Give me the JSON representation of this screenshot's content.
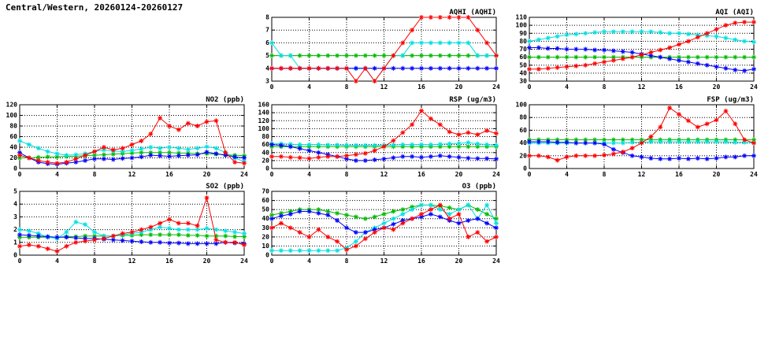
{
  "page_title": "Central/Western, 20260124-20260127",
  "chart_data": [
    {
      "type": "line",
      "title": "AQHI (AQHI)",
      "xlim": [
        0,
        24
      ],
      "x_ticks": [
        0,
        4,
        8,
        12,
        16,
        20,
        24
      ],
      "ylim": [
        3,
        8
      ],
      "y_ticks": [
        3,
        4,
        5,
        6,
        7,
        8
      ],
      "x": [
        0,
        1,
        2,
        3,
        4,
        5,
        6,
        7,
        8,
        9,
        10,
        11,
        12,
        13,
        14,
        15,
        16,
        17,
        18,
        19,
        20,
        21,
        22,
        23,
        24
      ],
      "series": [
        {
          "name": "green",
          "color": "#00bb00",
          "values": [
            5,
            5,
            5,
            5,
            5,
            5,
            5,
            5,
            5,
            5,
            5,
            5,
            5,
            5,
            5,
            5,
            5,
            5,
            5,
            5,
            5,
            5,
            5,
            5,
            5
          ]
        },
        {
          "name": "cyan",
          "color": "#00e0e0",
          "values": [
            6,
            5,
            5,
            4,
            4,
            4,
            4,
            4,
            4,
            4,
            4,
            3,
            4,
            5,
            5,
            6,
            6,
            6,
            6,
            6,
            6,
            6,
            5,
            5,
            5
          ]
        },
        {
          "name": "blue",
          "color": "#0000ff",
          "values": [
            4,
            4,
            4,
            4,
            4,
            4,
            4,
            4,
            4,
            4,
            4,
            4,
            4,
            4,
            4,
            4,
            4,
            4,
            4,
            4,
            4,
            4,
            4,
            4,
            4
          ]
        },
        {
          "name": "red",
          "color": "#ff0000",
          "values": [
            4,
            4,
            4,
            4,
            4,
            4,
            4,
            4,
            4,
            3,
            4,
            3,
            4,
            5,
            6,
            7,
            8,
            8,
            8,
            8,
            8,
            8,
            7,
            6,
            5
          ]
        }
      ]
    },
    {
      "type": "line",
      "title": "AQI (AQI)",
      "xlim": [
        0,
        24
      ],
      "x_ticks": [
        0,
        4,
        8,
        12,
        16,
        20,
        24
      ],
      "ylim": [
        30,
        110
      ],
      "y_ticks": [
        30,
        40,
        50,
        60,
        70,
        80,
        90,
        100,
        110
      ],
      "x": [
        0,
        1,
        2,
        3,
        4,
        5,
        6,
        7,
        8,
        9,
        10,
        11,
        12,
        13,
        14,
        15,
        16,
        17,
        18,
        19,
        20,
        21,
        22,
        23,
        24
      ],
      "series": [
        {
          "name": "green",
          "color": "#00bb00",
          "values": [
            60,
            60,
            60,
            60,
            60,
            60,
            60,
            60,
            60,
            60,
            60,
            60,
            60,
            60,
            60,
            60,
            60,
            60,
            60,
            60,
            60,
            60,
            60,
            60,
            60
          ]
        },
        {
          "name": "cyan",
          "color": "#00e0e0",
          "values": [
            80,
            82,
            84,
            86,
            88,
            89,
            90,
            91,
            92,
            92,
            92,
            92,
            92,
            92,
            91,
            90,
            90,
            89,
            88,
            87,
            86,
            84,
            82,
            80,
            79
          ]
        },
        {
          "name": "blue",
          "color": "#0000ff",
          "values": [
            72,
            72,
            71,
            71,
            70,
            70,
            70,
            69,
            69,
            68,
            67,
            66,
            64,
            62,
            60,
            58,
            56,
            54,
            52,
            50,
            48,
            46,
            44,
            43,
            45
          ]
        },
        {
          "name": "red",
          "color": "#ff0000",
          "values": [
            45,
            45,
            46,
            47,
            48,
            49,
            50,
            52,
            54,
            56,
            58,
            60,
            63,
            66,
            69,
            72,
            76,
            80,
            85,
            90,
            95,
            100,
            103,
            104,
            104
          ]
        }
      ]
    },
    {
      "type": "line",
      "title": "NO2 (ppb)",
      "xlim": [
        0,
        24
      ],
      "x_ticks": [
        0,
        4,
        8,
        12,
        16,
        20,
        24
      ],
      "ylim": [
        0,
        120
      ],
      "y_ticks": [
        0,
        20,
        40,
        60,
        80,
        100,
        120
      ],
      "x": [
        0,
        1,
        2,
        3,
        4,
        5,
        6,
        7,
        8,
        9,
        10,
        11,
        12,
        13,
        14,
        15,
        16,
        17,
        18,
        19,
        20,
        21,
        22,
        23,
        24
      ],
      "series": [
        {
          "name": "green",
          "color": "#00bb00",
          "values": [
            20,
            20,
            21,
            22,
            22,
            23,
            23,
            24,
            25,
            26,
            27,
            28,
            29,
            30,
            30,
            30,
            30,
            29,
            29,
            28,
            28,
            27,
            26,
            25,
            24
          ]
        },
        {
          "name": "cyan",
          "color": "#00e0e0",
          "values": [
            52,
            45,
            38,
            32,
            28,
            25,
            26,
            28,
            32,
            35,
            33,
            32,
            34,
            37,
            40,
            38,
            40,
            38,
            36,
            38,
            41,
            38,
            30,
            20,
            13
          ]
        },
        {
          "name": "blue",
          "color": "#0000ff",
          "values": [
            30,
            20,
            12,
            9,
            8,
            10,
            12,
            15,
            18,
            18,
            17,
            19,
            20,
            22,
            25,
            24,
            23,
            24,
            25,
            26,
            31,
            28,
            25,
            22,
            20
          ]
        },
        {
          "name": "red",
          "color": "#ff0000",
          "values": [
            25,
            20,
            15,
            12,
            10,
            12,
            18,
            25,
            32,
            40,
            35,
            38,
            45,
            52,
            65,
            95,
            80,
            73,
            85,
            80,
            88,
            90,
            30,
            12,
            10
          ]
        }
      ]
    },
    {
      "type": "line",
      "title": "RSP (ug/m3)",
      "xlim": [
        0,
        24
      ],
      "x_ticks": [
        0,
        4,
        8,
        12,
        16,
        20,
        24
      ],
      "ylim": [
        0,
        160
      ],
      "y_ticks": [
        0,
        20,
        40,
        60,
        80,
        100,
        120,
        140,
        160
      ],
      "x": [
        0,
        1,
        2,
        3,
        4,
        5,
        6,
        7,
        8,
        9,
        10,
        11,
        12,
        13,
        14,
        15,
        16,
        17,
        18,
        19,
        20,
        21,
        22,
        23,
        24
      ],
      "series": [
        {
          "name": "green",
          "color": "#00bb00",
          "values": [
            55,
            55,
            55,
            55,
            55,
            55,
            55,
            55,
            55,
            55,
            55,
            55,
            55,
            55,
            55,
            55,
            55,
            55,
            55,
            55,
            55,
            55,
            55,
            55,
            55
          ]
        },
        {
          "name": "cyan",
          "color": "#00e0e0",
          "values": [
            62,
            62,
            61,
            60,
            60,
            60,
            59,
            59,
            58,
            58,
            58,
            58,
            58,
            59,
            60,
            60,
            60,
            60,
            61,
            62,
            63,
            65,
            62,
            60,
            58
          ]
        },
        {
          "name": "blue",
          "color": "#0000ff",
          "values": [
            60,
            58,
            55,
            50,
            45,
            40,
            35,
            30,
            24,
            20,
            20,
            22,
            24,
            27,
            30,
            30,
            28,
            30,
            32,
            30,
            28,
            26,
            25,
            25,
            24
          ]
        },
        {
          "name": "red",
          "color": "#ff0000",
          "values": [
            30,
            30,
            28,
            27,
            25,
            28,
            30,
            30,
            32,
            35,
            38,
            45,
            55,
            70,
            90,
            110,
            145,
            125,
            110,
            92,
            85,
            90,
            85,
            95,
            88
          ]
        }
      ]
    },
    {
      "type": "line",
      "title": "FSP (ug/m3)",
      "xlim": [
        0,
        24
      ],
      "x_ticks": [
        0,
        4,
        8,
        12,
        16,
        20,
        24
      ],
      "ylim": [
        0,
        100
      ],
      "y_ticks": [
        0,
        20,
        40,
        60,
        80,
        100
      ],
      "x": [
        0,
        1,
        2,
        3,
        4,
        5,
        6,
        7,
        8,
        9,
        10,
        11,
        12,
        13,
        14,
        15,
        16,
        17,
        18,
        19,
        20,
        21,
        22,
        23,
        24
      ],
      "series": [
        {
          "name": "green",
          "color": "#00bb00",
          "values": [
            45,
            45,
            45,
            45,
            45,
            45,
            45,
            45,
            45,
            45,
            45,
            45,
            45,
            45,
            45,
            45,
            45,
            45,
            45,
            45,
            45,
            45,
            45,
            45,
            45
          ]
        },
        {
          "name": "cyan",
          "color": "#00e0e0",
          "values": [
            40,
            40,
            40,
            40,
            40,
            40,
            40,
            40,
            40,
            40,
            40,
            41,
            41,
            42,
            42,
            42,
            42,
            42,
            42,
            42,
            42,
            42,
            41,
            41,
            40
          ]
        },
        {
          "name": "blue",
          "color": "#0000ff",
          "values": [
            42,
            42,
            42,
            41,
            41,
            40,
            40,
            40,
            38,
            30,
            25,
            20,
            18,
            16,
            15,
            15,
            16,
            15,
            16,
            15,
            16,
            18,
            18,
            20,
            20
          ]
        },
        {
          "name": "red",
          "color": "#ff0000",
          "values": [
            20,
            20,
            18,
            13,
            18,
            20,
            20,
            20,
            21,
            23,
            26,
            32,
            40,
            50,
            65,
            95,
            85,
            75,
            65,
            70,
            76,
            90,
            70,
            45,
            40
          ]
        }
      ]
    },
    {
      "type": "line",
      "title": "SO2 (ppb)",
      "xlim": [
        0,
        24
      ],
      "x_ticks": [
        0,
        4,
        8,
        12,
        16,
        20,
        24
      ],
      "ylim": [
        0,
        5
      ],
      "y_ticks": [
        0,
        1,
        2,
        3,
        4,
        5
      ],
      "x": [
        0,
        1,
        2,
        3,
        4,
        5,
        6,
        7,
        8,
        9,
        10,
        11,
        12,
        13,
        14,
        15,
        16,
        17,
        18,
        19,
        20,
        21,
        22,
        23,
        24
      ],
      "series": [
        {
          "name": "green",
          "color": "#00bb00",
          "values": [
            1.4,
            1.4,
            1.4,
            1.4,
            1.4,
            1.45,
            1.45,
            1.5,
            1.5,
            1.5,
            1.5,
            1.55,
            1.55,
            1.6,
            1.6,
            1.6,
            1.6,
            1.6,
            1.55,
            1.55,
            1.5,
            1.5,
            1.5,
            1.45,
            1.45
          ]
        },
        {
          "name": "cyan",
          "color": "#00e0e0",
          "values": [
            2.0,
            1.9,
            1.7,
            1.4,
            1.3,
            1.8,
            2.6,
            2.4,
            1.8,
            1.5,
            1.5,
            1.6,
            1.7,
            1.8,
            2.0,
            2.2,
            2.1,
            2.0,
            2.0,
            2.0,
            2.1,
            2.0,
            1.9,
            1.8,
            1.7
          ]
        },
        {
          "name": "blue",
          "color": "#0000ff",
          "values": [
            1.6,
            1.55,
            1.5,
            1.45,
            1.4,
            1.4,
            1.35,
            1.3,
            1.3,
            1.25,
            1.2,
            1.15,
            1.1,
            1.05,
            1.0,
            1.0,
            0.95,
            0.95,
            0.9,
            0.9,
            0.9,
            0.9,
            1.0,
            0.95,
            0.9
          ]
        },
        {
          "name": "red",
          "color": "#ff0000",
          "values": [
            0.7,
            0.8,
            0.7,
            0.5,
            0.3,
            0.7,
            1.0,
            1.1,
            1.2,
            1.3,
            1.5,
            1.7,
            1.8,
            2.0,
            2.2,
            2.5,
            2.8,
            2.5,
            2.5,
            2.3,
            4.5,
            1.2,
            1.0,
            1.0,
            0.8
          ]
        }
      ]
    },
    {
      "type": "line",
      "title": "O3 (ppb)",
      "xlim": [
        0,
        24
      ],
      "x_ticks": [
        0,
        4,
        8,
        12,
        16,
        20,
        24
      ],
      "ylim": [
        0,
        70
      ],
      "y_ticks": [
        0,
        10,
        20,
        30,
        40,
        50,
        60,
        70
      ],
      "x": [
        0,
        1,
        2,
        3,
        4,
        5,
        6,
        7,
        8,
        9,
        10,
        11,
        12,
        13,
        14,
        15,
        16,
        17,
        18,
        19,
        20,
        21,
        22,
        23,
        24
      ],
      "series": [
        {
          "name": "green",
          "color": "#00bb00",
          "values": [
            44,
            46,
            48,
            50,
            50,
            50,
            48,
            46,
            44,
            42,
            40,
            42,
            45,
            48,
            50,
            53,
            55,
            55,
            54,
            52,
            50,
            55,
            50,
            45,
            40
          ]
        },
        {
          "name": "cyan",
          "color": "#00e0e0",
          "values": [
            5,
            5,
            5,
            5,
            5,
            5,
            5,
            5,
            8,
            15,
            25,
            30,
            35,
            40,
            45,
            50,
            55,
            55,
            50,
            45,
            50,
            55,
            40,
            55,
            35
          ]
        },
        {
          "name": "blue",
          "color": "#0000ff",
          "values": [
            40,
            43,
            45,
            48,
            48,
            46,
            44,
            38,
            30,
            25,
            25,
            28,
            30,
            34,
            38,
            40,
            42,
            45,
            42,
            38,
            35,
            38,
            40,
            35,
            30
          ]
        },
        {
          "name": "red",
          "color": "#ff0000",
          "values": [
            30,
            35,
            30,
            25,
            20,
            28,
            20,
            15,
            6,
            10,
            18,
            25,
            30,
            28,
            35,
            40,
            45,
            50,
            55,
            40,
            45,
            20,
            25,
            15,
            20
          ]
        }
      ]
    }
  ]
}
